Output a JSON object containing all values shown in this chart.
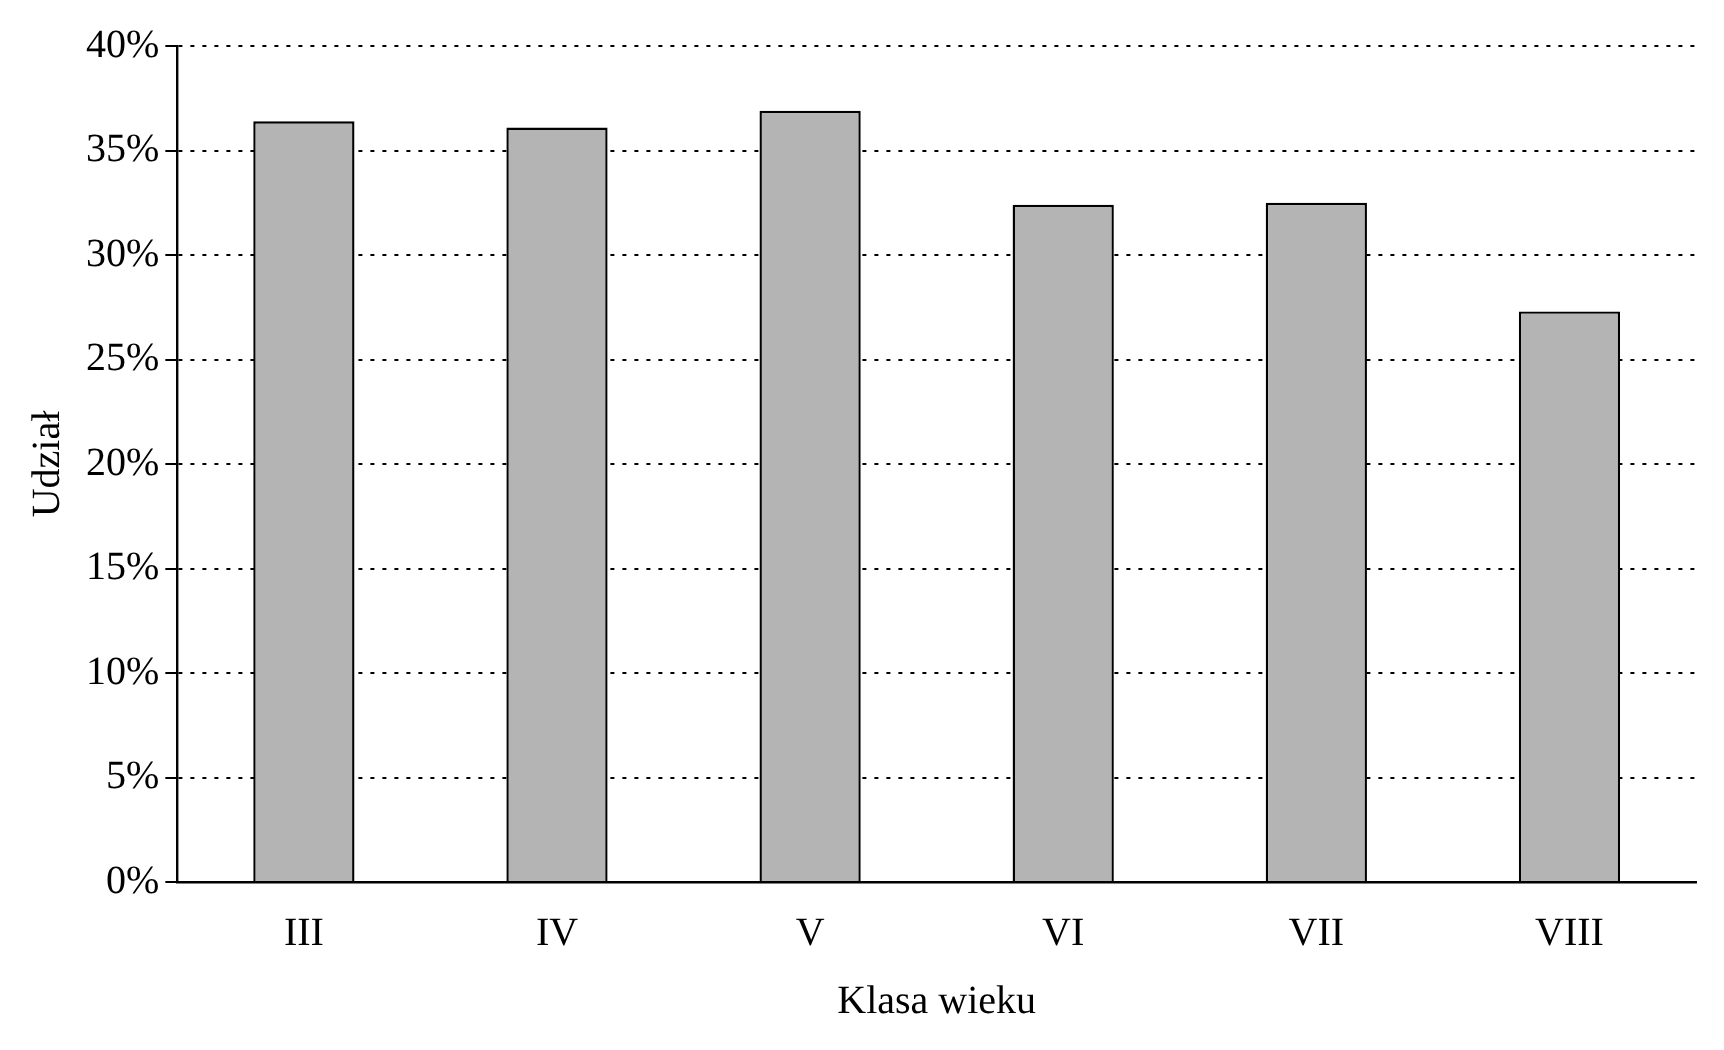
{
  "chart_data": {
    "type": "bar",
    "xlabel": "Klasa wieku",
    "ylabel": "Udział",
    "categories": [
      "III",
      "IV",
      "V",
      "VI",
      "VII",
      "VIII"
    ],
    "values": [
      36.4,
      36.1,
      36.9,
      32.4,
      32.5,
      27.3
    ],
    "color": "#b4b4b4",
    "ylim": [
      0,
      40
    ],
    "yticks": [
      {
        "value": 0,
        "label": "0%"
      },
      {
        "value": 5,
        "label": "5%"
      },
      {
        "value": 10,
        "label": "10%"
      },
      {
        "value": 15,
        "label": "15%"
      },
      {
        "value": 20,
        "label": "20%"
      },
      {
        "value": 25,
        "label": "25%"
      },
      {
        "value": 30,
        "label": "30%"
      },
      {
        "value": 35,
        "label": "35%"
      },
      {
        "value": 40,
        "label": "40%"
      }
    ],
    "grid": "y",
    "legend": false
  }
}
